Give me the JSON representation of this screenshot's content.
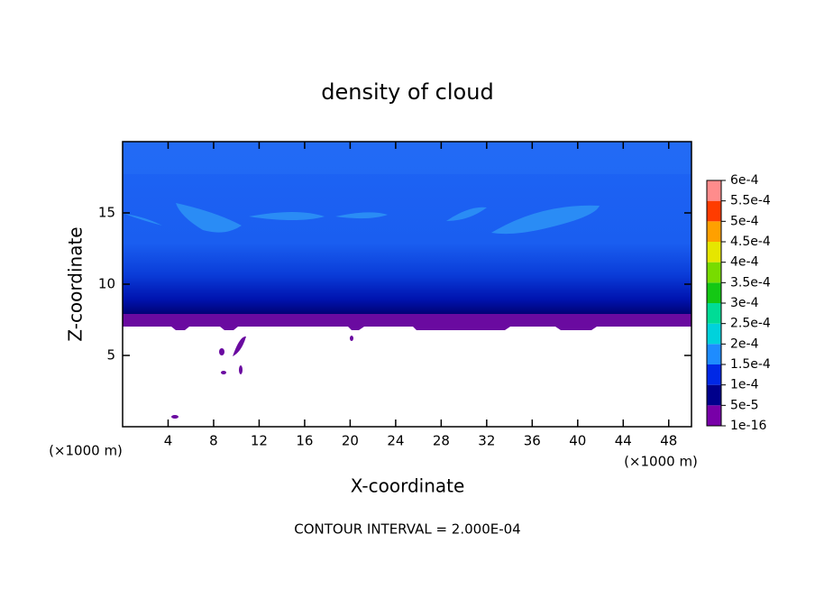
{
  "chart_data": {
    "type": "contour",
    "title": "density of cloud",
    "x_label": "X-coordinate",
    "y_label": "Z-coordinate",
    "x_unit": "(×1000 m)",
    "y_unit": "(×1000 m)",
    "note": "CONTOUR INTERVAL = 2.000E-04",
    "xlim": [
      0,
      50
    ],
    "ylim": [
      0,
      20
    ],
    "xticks": [
      4,
      8,
      12,
      16,
      20,
      24,
      28,
      32,
      36,
      40,
      44,
      48
    ],
    "yticks": [
      5,
      10,
      15
    ],
    "colorbar": {
      "ticks": [
        {
          "value": 1e-16,
          "label": "1e-16"
        },
        {
          "value": 5e-05,
          "label": "5e-5"
        },
        {
          "value": 0.0001,
          "label": "1e-4"
        },
        {
          "value": 0.00015,
          "label": "1.5e-4"
        },
        {
          "value": 0.0002,
          "label": "2e-4"
        },
        {
          "value": 0.00025,
          "label": "2.5e-4"
        },
        {
          "value": 0.0003,
          "label": "3e-4"
        },
        {
          "value": 0.00035,
          "label": "3.5e-4"
        },
        {
          "value": 0.0004,
          "label": "4e-4"
        },
        {
          "value": 0.00045,
          "label": "4.5e-4"
        },
        {
          "value": 0.0005,
          "label": "5e-4"
        },
        {
          "value": 0.00055,
          "label": "5.5e-4"
        },
        {
          "value": 0.0006,
          "label": "6e-4"
        }
      ],
      "colors": [
        "#7800a8",
        "#00008c",
        "#0028e6",
        "#1e8cff",
        "#00d2dc",
        "#00dc96",
        "#14c814",
        "#78dc00",
        "#e6e600",
        "#ffa000",
        "#ff3c00",
        "#ff8c8c"
      ]
    }
  }
}
